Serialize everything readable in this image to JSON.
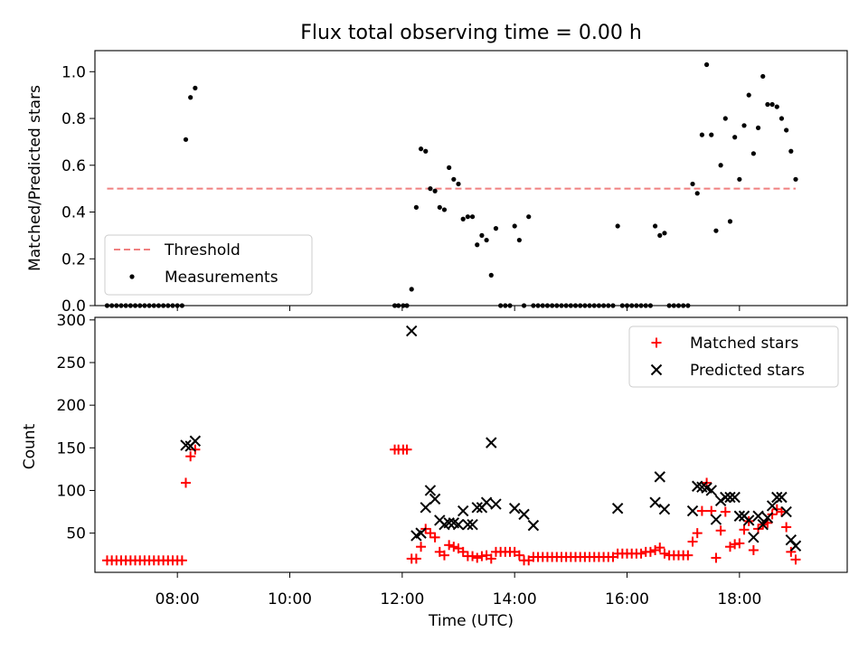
{
  "chart_data": [
    {
      "type": "scatter",
      "title": "Flux total observing time = 0.00 h",
      "xlabel": "",
      "ylabel": "Matched/Predicted stars",
      "xlim": [
        "06:32",
        "19:55"
      ],
      "ylim": [
        0,
        1.09
      ],
      "yticks": [
        "0.0",
        "0.2",
        "0.4",
        "0.6",
        "0.8",
        "1.0"
      ],
      "legend_position": "lower-left",
      "threshold": {
        "name": "Threshold",
        "value": 0.5,
        "x": [
          "06:45",
          "19:00"
        ],
        "color": "#f08080"
      },
      "series": [
        {
          "name": "Measurements",
          "color": "#000000",
          "points": [
            [
              "06:45",
              0
            ],
            [
              "06:50",
              0
            ],
            [
              "06:55",
              0
            ],
            [
              "07:00",
              0
            ],
            [
              "07:05",
              0
            ],
            [
              "07:10",
              0
            ],
            [
              "07:15",
              0
            ],
            [
              "07:20",
              0
            ],
            [
              "07:25",
              0
            ],
            [
              "07:30",
              0
            ],
            [
              "07:35",
              0
            ],
            [
              "07:40",
              0
            ],
            [
              "07:45",
              0
            ],
            [
              "07:50",
              0
            ],
            [
              "07:55",
              0
            ],
            [
              "08:00",
              0
            ],
            [
              "08:05",
              0
            ],
            [
              "08:09",
              0.71
            ],
            [
              "08:14",
              0.89
            ],
            [
              "08:19",
              0.93
            ],
            [
              "11:52",
              0
            ],
            [
              "11:56",
              0
            ],
            [
              "12:01",
              0
            ],
            [
              "12:05",
              0
            ],
            [
              "12:10",
              0.07
            ],
            [
              "12:15",
              0.42
            ],
            [
              "12:20",
              0.67
            ],
            [
              "12:25",
              0.66
            ],
            [
              "12:30",
              0.5
            ],
            [
              "12:35",
              0.49
            ],
            [
              "12:40",
              0.42
            ],
            [
              "12:45",
              0.41
            ],
            [
              "12:50",
              0.59
            ],
            [
              "12:55",
              0.54
            ],
            [
              "13:00",
              0.52
            ],
            [
              "13:05",
              0.37
            ],
            [
              "13:10",
              0.38
            ],
            [
              "13:15",
              0.38
            ],
            [
              "13:20",
              0.26
            ],
            [
              "13:25",
              0.3
            ],
            [
              "13:30",
              0.28
            ],
            [
              "13:35",
              0.13
            ],
            [
              "13:40",
              0.33
            ],
            [
              "13:45",
              0
            ],
            [
              "13:50",
              0
            ],
            [
              "13:55",
              0
            ],
            [
              "14:00",
              0.34
            ],
            [
              "14:05",
              0.28
            ],
            [
              "14:10",
              0
            ],
            [
              "14:15",
              0.38
            ],
            [
              "14:20",
              0
            ],
            [
              "14:25",
              0
            ],
            [
              "14:30",
              0
            ],
            [
              "14:35",
              0
            ],
            [
              "14:40",
              0
            ],
            [
              "14:45",
              0
            ],
            [
              "14:50",
              0
            ],
            [
              "14:55",
              0
            ],
            [
              "15:00",
              0
            ],
            [
              "15:05",
              0
            ],
            [
              "15:10",
              0
            ],
            [
              "15:15",
              0
            ],
            [
              "15:20",
              0
            ],
            [
              "15:25",
              0
            ],
            [
              "15:30",
              0
            ],
            [
              "15:35",
              0
            ],
            [
              "15:40",
              0
            ],
            [
              "15:45",
              0
            ],
            [
              "15:50",
              0.34
            ],
            [
              "15:55",
              0
            ],
            [
              "16:00",
              0
            ],
            [
              "16:05",
              0
            ],
            [
              "16:10",
              0
            ],
            [
              "16:15",
              0
            ],
            [
              "16:20",
              0
            ],
            [
              "16:25",
              0
            ],
            [
              "16:30",
              0.34
            ],
            [
              "16:35",
              0.3
            ],
            [
              "16:40",
              0.31
            ],
            [
              "16:45",
              0
            ],
            [
              "16:50",
              0
            ],
            [
              "16:55",
              0
            ],
            [
              "17:00",
              0
            ],
            [
              "17:05",
              0
            ],
            [
              "17:10",
              0.52
            ],
            [
              "17:15",
              0.48
            ],
            [
              "17:20",
              0.73
            ],
            [
              "17:25",
              1.03
            ],
            [
              "17:30",
              0.73
            ],
            [
              "17:35",
              0.32
            ],
            [
              "17:40",
              0.6
            ],
            [
              "17:45",
              0.8
            ],
            [
              "17:50",
              0.36
            ],
            [
              "17:55",
              0.72
            ],
            [
              "18:00",
              0.54
            ],
            [
              "18:05",
              0.77
            ],
            [
              "18:10",
              0.9
            ],
            [
              "18:15",
              0.65
            ],
            [
              "18:20",
              0.76
            ],
            [
              "18:25",
              0.98
            ],
            [
              "18:30",
              0.86
            ],
            [
              "18:35",
              0.86
            ],
            [
              "18:40",
              0.85
            ],
            [
              "18:45",
              0.8
            ],
            [
              "18:50",
              0.75
            ],
            [
              "18:55",
              0.66
            ],
            [
              "19:00",
              0.54
            ]
          ]
        }
      ]
    },
    {
      "type": "scatter",
      "title": "",
      "xlabel": "Time (UTC)",
      "ylabel": "Count",
      "xlim": [
        "06:32",
        "19:55"
      ],
      "ylim": [
        4,
        303
      ],
      "yticks": [
        "50",
        "100",
        "150",
        "200",
        "250",
        "300"
      ],
      "xticks": [
        "08:00",
        "10:00",
        "12:00",
        "14:00",
        "16:00",
        "18:00"
      ],
      "legend_position": "upper-right",
      "series": [
        {
          "name": "Matched stars",
          "marker": "plus",
          "color": "#ff0000",
          "points": [
            [
              "06:45",
              18
            ],
            [
              "06:50",
              18
            ],
            [
              "06:55",
              18
            ],
            [
              "07:00",
              18
            ],
            [
              "07:05",
              18
            ],
            [
              "07:10",
              18
            ],
            [
              "07:15",
              18
            ],
            [
              "07:20",
              18
            ],
            [
              "07:25",
              18
            ],
            [
              "07:30",
              18
            ],
            [
              "07:35",
              18
            ],
            [
              "07:40",
              18
            ],
            [
              "07:45",
              18
            ],
            [
              "07:50",
              18
            ],
            [
              "07:55",
              18
            ],
            [
              "08:00",
              18
            ],
            [
              "08:05",
              18
            ],
            [
              "08:09",
              109
            ],
            [
              "08:14",
              140
            ],
            [
              "08:19",
              148
            ],
            [
              "11:52",
              148
            ],
            [
              "11:56",
              148
            ],
            [
              "12:01",
              148
            ],
            [
              "12:05",
              148
            ],
            [
              "12:10",
              20
            ],
            [
              "12:15",
              20
            ],
            [
              "12:20",
              34
            ],
            [
              "12:25",
              55
            ],
            [
              "12:30",
              50
            ],
            [
              "12:35",
              45
            ],
            [
              "12:40",
              28
            ],
            [
              "12:45",
              24
            ],
            [
              "12:50",
              36
            ],
            [
              "12:55",
              34
            ],
            [
              "13:00",
              32
            ],
            [
              "13:05",
              28
            ],
            [
              "13:10",
              23
            ],
            [
              "13:15",
              23
            ],
            [
              "13:20",
              21
            ],
            [
              "13:25",
              23
            ],
            [
              "13:30",
              24
            ],
            [
              "13:35",
              20
            ],
            [
              "13:40",
              28
            ],
            [
              "13:45",
              28
            ],
            [
              "13:50",
              28
            ],
            [
              "13:55",
              28
            ],
            [
              "14:00",
              28
            ],
            [
              "14:05",
              24
            ],
            [
              "14:10",
              18
            ],
            [
              "14:15",
              18
            ],
            [
              "14:20",
              22
            ],
            [
              "14:25",
              22
            ],
            [
              "14:30",
              22
            ],
            [
              "14:35",
              22
            ],
            [
              "14:40",
              22
            ],
            [
              "14:45",
              22
            ],
            [
              "14:50",
              22
            ],
            [
              "14:55",
              22
            ],
            [
              "15:00",
              22
            ],
            [
              "15:05",
              22
            ],
            [
              "15:10",
              22
            ],
            [
              "15:15",
              22
            ],
            [
              "15:20",
              22
            ],
            [
              "15:25",
              22
            ],
            [
              "15:30",
              22
            ],
            [
              "15:35",
              22
            ],
            [
              "15:40",
              22
            ],
            [
              "15:45",
              22
            ],
            [
              "15:50",
              26
            ],
            [
              "15:55",
              26
            ],
            [
              "16:00",
              26
            ],
            [
              "16:05",
              26
            ],
            [
              "16:10",
              26
            ],
            [
              "16:15",
              26
            ],
            [
              "16:20",
              28
            ],
            [
              "16:25",
              28
            ],
            [
              "16:30",
              30
            ],
            [
              "16:35",
              33
            ],
            [
              "16:40",
              26
            ],
            [
              "16:45",
              24
            ],
            [
              "16:50",
              24
            ],
            [
              "16:55",
              24
            ],
            [
              "17:00",
              24
            ],
            [
              "17:05",
              24
            ],
            [
              "17:10",
              40
            ],
            [
              "17:15",
              50
            ],
            [
              "17:20",
              76
            ],
            [
              "17:25",
              109
            ],
            [
              "17:30",
              76
            ],
            [
              "17:35",
              21
            ],
            [
              "17:40",
              53
            ],
            [
              "17:45",
              75
            ],
            [
              "17:50",
              34
            ],
            [
              "17:55",
              37
            ],
            [
              "18:00",
              38
            ],
            [
              "18:05",
              54
            ],
            [
              "18:10",
              64
            ],
            [
              "18:15",
              30
            ],
            [
              "18:20",
              55
            ],
            [
              "18:25",
              60
            ],
            [
              "18:30",
              62
            ],
            [
              "18:35",
              72
            ],
            [
              "18:40",
              78
            ],
            [
              "18:45",
              75
            ],
            [
              "18:50",
              57
            ],
            [
              "18:55",
              28
            ],
            [
              "19:00",
              19
            ]
          ]
        },
        {
          "name": "Predicted stars",
          "marker": "x",
          "color": "#000000",
          "points": [
            [
              "08:09",
              153
            ],
            [
              "08:14",
              152
            ],
            [
              "08:19",
              158
            ],
            [
              "12:10",
              287
            ],
            [
              "12:15",
              47
            ],
            [
              "12:20",
              50
            ],
            [
              "12:25",
              80
            ],
            [
              "12:30",
              100
            ],
            [
              "12:35",
              90
            ],
            [
              "12:40",
              65
            ],
            [
              "12:45",
              60
            ],
            [
              "12:50",
              62
            ],
            [
              "12:55",
              62
            ],
            [
              "13:00",
              60
            ],
            [
              "13:05",
              76
            ],
            [
              "13:10",
              60
            ],
            [
              "13:15",
              60
            ],
            [
              "13:20",
              80
            ],
            [
              "13:25",
              80
            ],
            [
              "13:30",
              86
            ],
            [
              "13:35",
              156
            ],
            [
              "13:40",
              84
            ],
            [
              "14:00",
              79
            ],
            [
              "14:10",
              72
            ],
            [
              "14:20",
              59
            ],
            [
              "15:50",
              79
            ],
            [
              "16:30",
              86
            ],
            [
              "16:35",
              116
            ],
            [
              "16:40",
              78
            ],
            [
              "17:10",
              76
            ],
            [
              "17:15",
              105
            ],
            [
              "17:20",
              104
            ],
            [
              "17:25",
              103
            ],
            [
              "17:30",
              100
            ],
            [
              "17:35",
              66
            ],
            [
              "17:40",
              88
            ],
            [
              "17:45",
              92
            ],
            [
              "17:50",
              92
            ],
            [
              "17:55",
              92
            ],
            [
              "18:00",
              70
            ],
            [
              "18:05",
              70
            ],
            [
              "18:10",
              65
            ],
            [
              "18:15",
              45
            ],
            [
              "18:20",
              70
            ],
            [
              "18:25",
              60
            ],
            [
              "18:30",
              68
            ],
            [
              "18:35",
              82
            ],
            [
              "18:40",
              92
            ],
            [
              "18:45",
              92
            ],
            [
              "18:50",
              75
            ],
            [
              "18:55",
              42
            ],
            [
              "19:00",
              35
            ]
          ]
        }
      ]
    }
  ]
}
